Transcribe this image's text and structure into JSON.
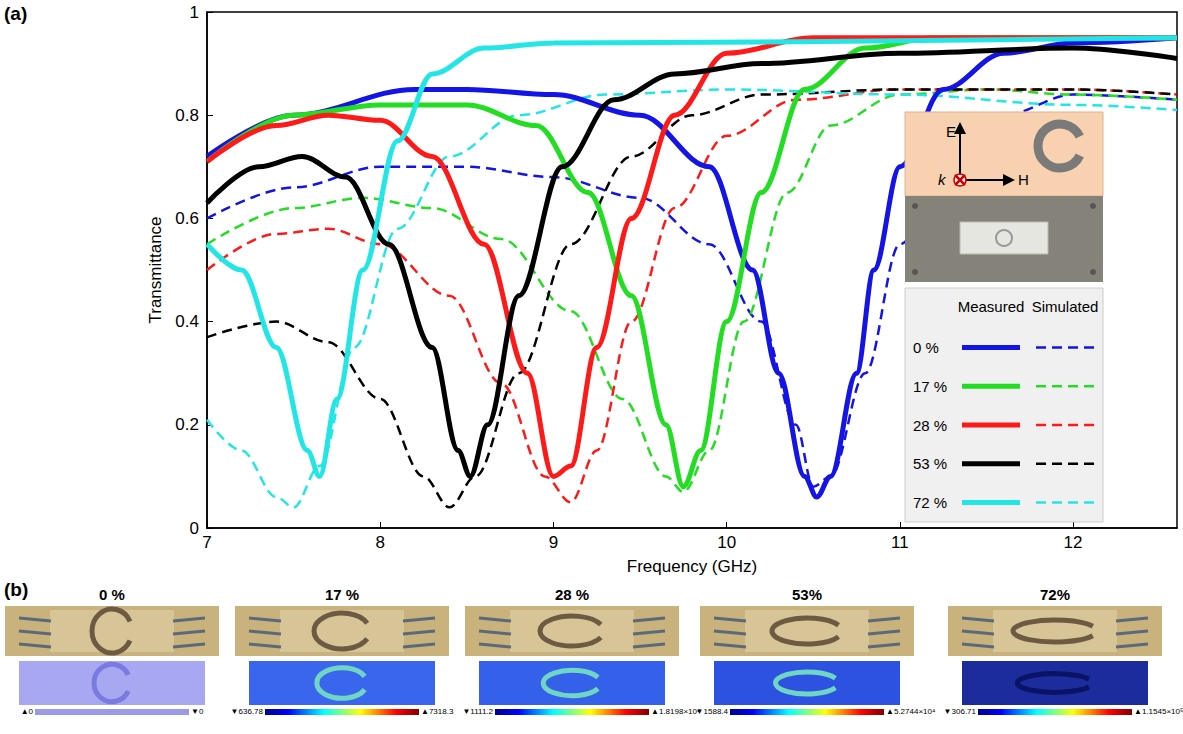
{
  "panel_labels": [
    "(a)",
    "(b)"
  ],
  "chart_data": {
    "type": "line",
    "xlabel": "Frequency (GHz)",
    "ylabel": "Transmittance",
    "xlim": [
      7,
      12.6
    ],
    "xticks": [
      7,
      8,
      9,
      10,
      11,
      12
    ],
    "ylim": [
      0,
      1
    ],
    "yticks": [
      0,
      0.2,
      0.4,
      0.6,
      0.8,
      1
    ],
    "grid": false,
    "legend": "lower right",
    "legend_headers": [
      "Measured",
      "Simulated"
    ],
    "inset_labels": [
      "E",
      "k",
      "H"
    ],
    "series": [
      {
        "name": "0 %",
        "color": "#1414e6",
        "line_style": "solid",
        "x": [
          7,
          7.5,
          8.2,
          8.5,
          9,
          9.5,
          9.9,
          10.15,
          10.3,
          10.45,
          10.52,
          10.6,
          10.75,
          10.85,
          11,
          11.25,
          11.6,
          12,
          12.6
        ],
        "values": [
          0.72,
          0.8,
          0.85,
          0.85,
          0.84,
          0.8,
          0.7,
          0.5,
          0.3,
          0.1,
          0.06,
          0.1,
          0.3,
          0.5,
          0.7,
          0.85,
          0.92,
          0.94,
          0.95
        ]
      },
      {
        "name": "0 %",
        "color": "#1414e6",
        "line_style": "dashed",
        "x": [
          7,
          7.5,
          8,
          8.5,
          9,
          9.5,
          9.9,
          10.2,
          10.4,
          10.5,
          10.6,
          10.8,
          11,
          11.3,
          11.6,
          12,
          12.6
        ],
        "values": [
          0.6,
          0.66,
          0.7,
          0.7,
          0.68,
          0.64,
          0.55,
          0.4,
          0.2,
          0.08,
          0.1,
          0.3,
          0.55,
          0.72,
          0.8,
          0.84,
          0.83
        ]
      },
      {
        "name": "17 %",
        "color": "#22dd22",
        "line_style": "solid",
        "x": [
          7,
          7.5,
          8,
          8.5,
          8.9,
          9.2,
          9.45,
          9.65,
          9.75,
          9.85,
          10,
          10.2,
          10.45,
          10.8,
          11.2,
          12.6
        ],
        "values": [
          0.71,
          0.8,
          0.82,
          0.82,
          0.78,
          0.65,
          0.45,
          0.2,
          0.08,
          0.15,
          0.4,
          0.65,
          0.85,
          0.93,
          0.95,
          0.95
        ]
      },
      {
        "name": "17 %",
        "color": "#22dd22",
        "line_style": "dashed",
        "x": [
          7,
          7.5,
          7.9,
          8.3,
          8.7,
          9.1,
          9.4,
          9.65,
          9.75,
          9.9,
          10.1,
          10.35,
          10.6,
          11,
          11.5,
          12,
          12.6
        ],
        "values": [
          0.55,
          0.62,
          0.64,
          0.62,
          0.56,
          0.42,
          0.25,
          0.1,
          0.07,
          0.15,
          0.4,
          0.65,
          0.78,
          0.84,
          0.85,
          0.84,
          0.83
        ]
      },
      {
        "name": "28 %",
        "color": "#ff1a1a",
        "line_style": "solid",
        "x": [
          7,
          7.4,
          7.7,
          8,
          8.3,
          8.6,
          8.85,
          9,
          9.1,
          9.25,
          9.45,
          9.7,
          10,
          10.5,
          12.6
        ],
        "values": [
          0.71,
          0.78,
          0.8,
          0.79,
          0.72,
          0.55,
          0.3,
          0.1,
          0.12,
          0.35,
          0.6,
          0.8,
          0.92,
          0.95,
          0.95
        ]
      },
      {
        "name": "28 %",
        "color": "#ff1a1a",
        "line_style": "dashed",
        "x": [
          7,
          7.4,
          7.7,
          8,
          8.4,
          8.7,
          8.95,
          9.1,
          9.25,
          9.45,
          9.7,
          10,
          10.4,
          11,
          12,
          12.6
        ],
        "values": [
          0.5,
          0.57,
          0.58,
          0.55,
          0.45,
          0.28,
          0.1,
          0.05,
          0.15,
          0.4,
          0.62,
          0.76,
          0.83,
          0.85,
          0.85,
          0.84
        ]
      },
      {
        "name": "53 %",
        "color": "#000000",
        "line_style": "solid",
        "x": [
          7,
          7.3,
          7.55,
          7.8,
          8.05,
          8.3,
          8.45,
          8.52,
          8.62,
          8.8,
          9.05,
          9.35,
          9.7,
          10.2,
          11,
          12,
          12.6
        ],
        "values": [
          0.63,
          0.7,
          0.72,
          0.68,
          0.55,
          0.35,
          0.15,
          0.1,
          0.2,
          0.45,
          0.7,
          0.83,
          0.88,
          0.9,
          0.92,
          0.93,
          0.91
        ]
      },
      {
        "name": "53 %",
        "color": "#000000",
        "line_style": "dashed",
        "x": [
          7,
          7.4,
          7.7,
          8,
          8.25,
          8.4,
          8.55,
          8.8,
          9.1,
          9.45,
          9.8,
          10.2,
          11,
          12,
          12.6
        ],
        "values": [
          0.37,
          0.4,
          0.36,
          0.25,
          0.1,
          0.04,
          0.1,
          0.3,
          0.55,
          0.72,
          0.8,
          0.84,
          0.85,
          0.85,
          0.84
        ]
      },
      {
        "name": "72 %",
        "color": "#22e5e5",
        "line_style": "solid",
        "x": [
          7,
          7.2,
          7.4,
          7.58,
          7.65,
          7.75,
          7.9,
          8.1,
          8.3,
          8.6,
          9,
          12.6
        ],
        "values": [
          0.55,
          0.5,
          0.35,
          0.15,
          0.1,
          0.25,
          0.5,
          0.75,
          0.88,
          0.93,
          0.94,
          0.95
        ]
      },
      {
        "name": "72 %",
        "color": "#22e5e5",
        "line_style": "dashed",
        "x": [
          7,
          7.2,
          7.4,
          7.5,
          7.65,
          7.85,
          8.1,
          8.4,
          8.8,
          9.3,
          10,
          11,
          12,
          12.6
        ],
        "values": [
          0.21,
          0.15,
          0.06,
          0.04,
          0.12,
          0.35,
          0.58,
          0.72,
          0.8,
          0.84,
          0.85,
          0.84,
          0.82,
          0.81
        ]
      }
    ]
  },
  "panel_b": {
    "panels": [
      {
        "title": "0 %",
        "colorbar_min_label": "▲0",
        "colorbar_max_label": "▼0"
      },
      {
        "title": "17 %",
        "colorbar_min_label": "▼636.78",
        "colorbar_max_label": "▲7318.3"
      },
      {
        "title": "28 %",
        "colorbar_min_label": "▼1111.2",
        "colorbar_max_label": "▲1.8198×10⁴"
      },
      {
        "title": "53%",
        "colorbar_min_label": "▼1588.4",
        "colorbar_max_label": "▲5.2744×10⁴"
      },
      {
        "title": "72%",
        "colorbar_min_label": "▼306.71",
        "colorbar_max_label": "▲1.1545×10⁵"
      }
    ]
  }
}
